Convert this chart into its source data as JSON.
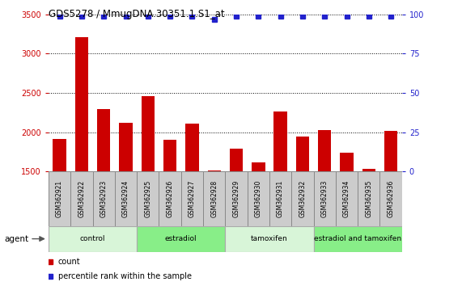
{
  "title": "GDS5278 / MmugDNA.30351.1.S1_at",
  "samples": [
    "GSM362921",
    "GSM362922",
    "GSM362923",
    "GSM362924",
    "GSM362925",
    "GSM362926",
    "GSM362927",
    "GSM362928",
    "GSM362929",
    "GSM362930",
    "GSM362931",
    "GSM362932",
    "GSM362933",
    "GSM362934",
    "GSM362935",
    "GSM362936"
  ],
  "counts": [
    1920,
    3210,
    2290,
    2120,
    2460,
    1900,
    2110,
    1510,
    1790,
    1620,
    2260,
    1950,
    2030,
    1740,
    1540,
    2020
  ],
  "percentiles": [
    99,
    99,
    99,
    99,
    99,
    99,
    99,
    97,
    99,
    99,
    99,
    99,
    99,
    99,
    99,
    99
  ],
  "bar_color": "#cc0000",
  "dot_color": "#2222cc",
  "groups": [
    {
      "label": "control",
      "start": 0,
      "end": 4,
      "color": "#d8f5d8"
    },
    {
      "label": "estradiol",
      "start": 4,
      "end": 8,
      "color": "#88ee88"
    },
    {
      "label": "tamoxifen",
      "start": 8,
      "end": 12,
      "color": "#d8f5d8"
    },
    {
      "label": "estradiol and tamoxifen",
      "start": 12,
      "end": 16,
      "color": "#88ee88"
    }
  ],
  "ylim_left": [
    1500,
    3500
  ],
  "ylim_right": [
    0,
    100
  ],
  "yticks_left": [
    1500,
    2000,
    2500,
    3000,
    3500
  ],
  "yticks_right": [
    0,
    25,
    50,
    75,
    100
  ],
  "left_tick_color": "#cc0000",
  "right_tick_color": "#2222cc",
  "sample_box_color": "#cccccc",
  "sample_box_edge": "#888888",
  "plot_bg": "#ffffff",
  "agent_label": "agent"
}
